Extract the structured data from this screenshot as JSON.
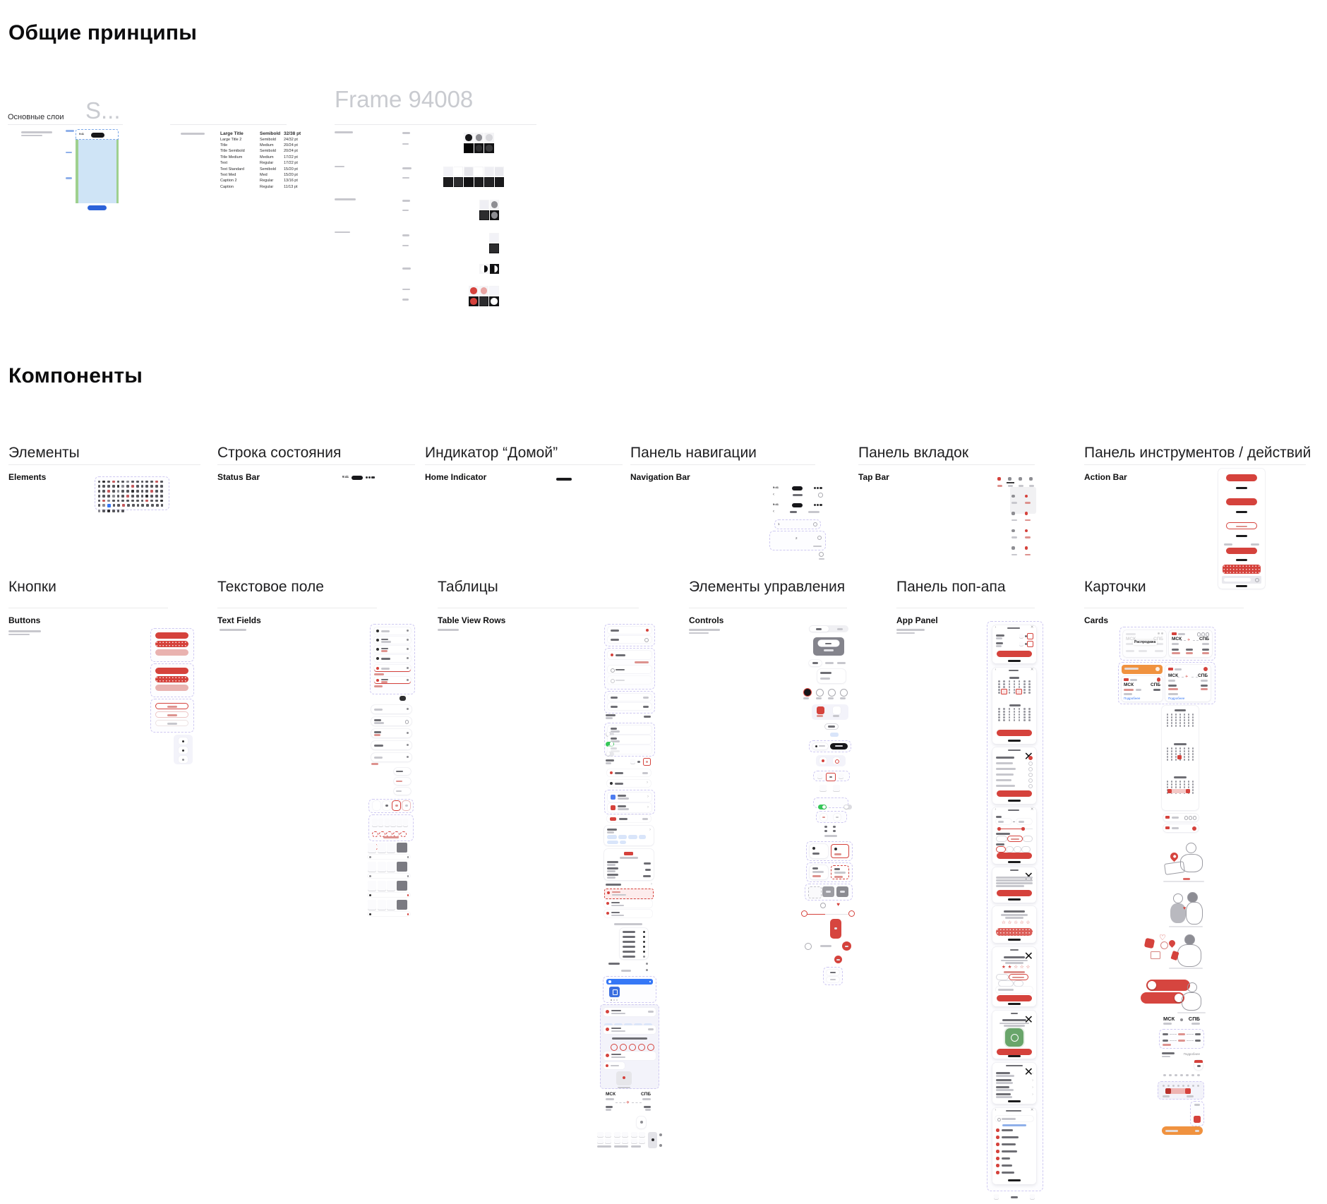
{
  "headings": {
    "general": "Общие принципы",
    "components": "Компоненты"
  },
  "layers_frame": {
    "label": "Основные слои",
    "title": "S..."
  },
  "typography_frame": {
    "rows": [
      {
        "name": "Large Title",
        "weight": "Semibold",
        "size": "32/38 pt"
      },
      {
        "name": "Large Title 2",
        "weight": "Semibold",
        "size": "24/32 pt"
      },
      {
        "name": "Title",
        "weight": "Medium",
        "size": "20/24 pt"
      },
      {
        "name": "Title Semibold",
        "weight": "Semibold",
        "size": "20/24 pt"
      },
      {
        "name": "Title Medium",
        "weight": "Medium",
        "size": "17/22 pt"
      },
      {
        "name": "Text",
        "weight": "Regular",
        "size": "17/22 pt"
      },
      {
        "name": "Text Standard",
        "weight": "Semibold",
        "size": "15/20 pt"
      },
      {
        "name": "Text Med",
        "weight": "Med",
        "size": "15/20 pt"
      },
      {
        "name": "Caption 2",
        "weight": "Regular",
        "size": "13/16 pt"
      },
      {
        "name": "Caption",
        "weight": "Regular",
        "size": "11/13 pt"
      }
    ]
  },
  "colors_frame": {
    "title": "Frame 94008",
    "g1r1": [
      {
        "c": "#161618",
        "t": "tl",
        "s": "circle"
      },
      {
        "c": "#8E8E93",
        "t": "tl",
        "s": "circle"
      },
      {
        "c": "#D8D8DC",
        "t": "tl",
        "s": "circle"
      }
    ],
    "g1r2": [
      {
        "c": "#060606",
        "t": "td",
        "s": "square"
      },
      {
        "c": "#2C2C2E",
        "t": "td",
        "s": "circle"
      },
      {
        "c": "#3A3A3C",
        "t": "td",
        "s": "circle"
      }
    ],
    "g2r1": [
      {
        "c": "#F2F2F7",
        "t": "tl",
        "s": "square"
      },
      {
        "c": "#FFFFFF",
        "t": "tl",
        "s": "square"
      },
      {
        "c": "#E5E5EA",
        "t": "tl",
        "s": "square"
      },
      {
        "c": "#FFFFFF",
        "t": "tl",
        "s": "square"
      },
      {
        "c": "#EFEFF4",
        "t": "tl",
        "s": "square"
      },
      {
        "c": "#E9E9EE",
        "t": "tl",
        "s": "square"
      }
    ],
    "g2r2": [
      {
        "c": "#1C1C1E",
        "t": "td",
        "s": "square"
      },
      {
        "c": "#2C2C2E",
        "t": "td",
        "s": "square"
      },
      {
        "c": "#121214",
        "t": "td",
        "s": "square"
      },
      {
        "c": "#1C1C1E",
        "t": "td",
        "s": "square"
      },
      {
        "c": "#232325",
        "t": "td",
        "s": "square"
      },
      {
        "c": "#1A1A1C",
        "t": "td",
        "s": "square"
      }
    ],
    "g3r1": [
      {
        "c": "#EFEFF4",
        "t": "tl",
        "s": "square"
      },
      {
        "c": "#8E8E93",
        "t": "tl",
        "s": "circle"
      }
    ],
    "g3r2": [
      {
        "c": "#2C2C2E",
        "t": "td",
        "s": "square"
      },
      {
        "c": "#8E8E93",
        "t": "td",
        "s": "circle"
      }
    ],
    "g4r1": [
      {
        "c": "#F2F2F7",
        "t": "tl",
        "s": "square"
      }
    ],
    "g4r2": [
      {
        "c": "#2C2C2E",
        "t": "td",
        "s": "square"
      }
    ],
    "g5": [
      {
        "c": "",
        "t": "tl",
        "s": "halfA"
      },
      {
        "c": "",
        "t": "td",
        "s": "halfB"
      }
    ],
    "g6r1": [
      {
        "c": "#D5423C",
        "t": "tl",
        "s": "circle"
      },
      {
        "c": "#E8A5A3",
        "t": "tl",
        "s": "circle"
      },
      {
        "c": "#F5F5FA",
        "t": "tl",
        "s": "square"
      }
    ],
    "g6r2": [
      {
        "c": "#D5423C",
        "t": "td",
        "s": "circle"
      },
      {
        "c": "#2C2C2E",
        "t": "td",
        "s": "square"
      },
      {
        "c": "#FFFFFF",
        "t": "td",
        "s": "circle"
      }
    ]
  },
  "status": {
    "time": "9:41"
  },
  "sections": {
    "elements": {
      "ru": "Элементы",
      "en": "Elements"
    },
    "status_bar": {
      "ru": "Строка состояния",
      "en": "Status Bar"
    },
    "home_indicator": {
      "ru": "Индикатор “Домой”",
      "en": "Home Indicator"
    },
    "navigation_bar": {
      "ru": "Панель навигации",
      "en": "Navigation Bar"
    },
    "tab_bar": {
      "ru": "Панель вкладок",
      "en": "Tap Bar"
    },
    "action_bar": {
      "ru": "Панель инструментов / действий",
      "en": "Action Bar"
    },
    "buttons": {
      "ru": "Кнопки",
      "en": "Buttons"
    },
    "text_fields": {
      "ru": "Текстовое поле",
      "en": "Text Fields"
    },
    "tables": {
      "ru": "Таблицы",
      "en": "Table View Rows"
    },
    "controls": {
      "ru": "Элементы управления",
      "en": "Controls"
    },
    "popup": {
      "ru": "Панель поп-апа",
      "en": "App Panel"
    },
    "cards": {
      "ru": "Карточки",
      "en": "Cards"
    }
  },
  "flight": {
    "from": "МСК",
    "to": "СПБ",
    "sale": "Распродажа",
    "details": "Подробнее"
  },
  "accent_colors": {
    "red": "#D5423C",
    "pink": "#E9B2B0",
    "green": "#35C759",
    "blue": "#3577F6",
    "orange": "#F0923F"
  }
}
